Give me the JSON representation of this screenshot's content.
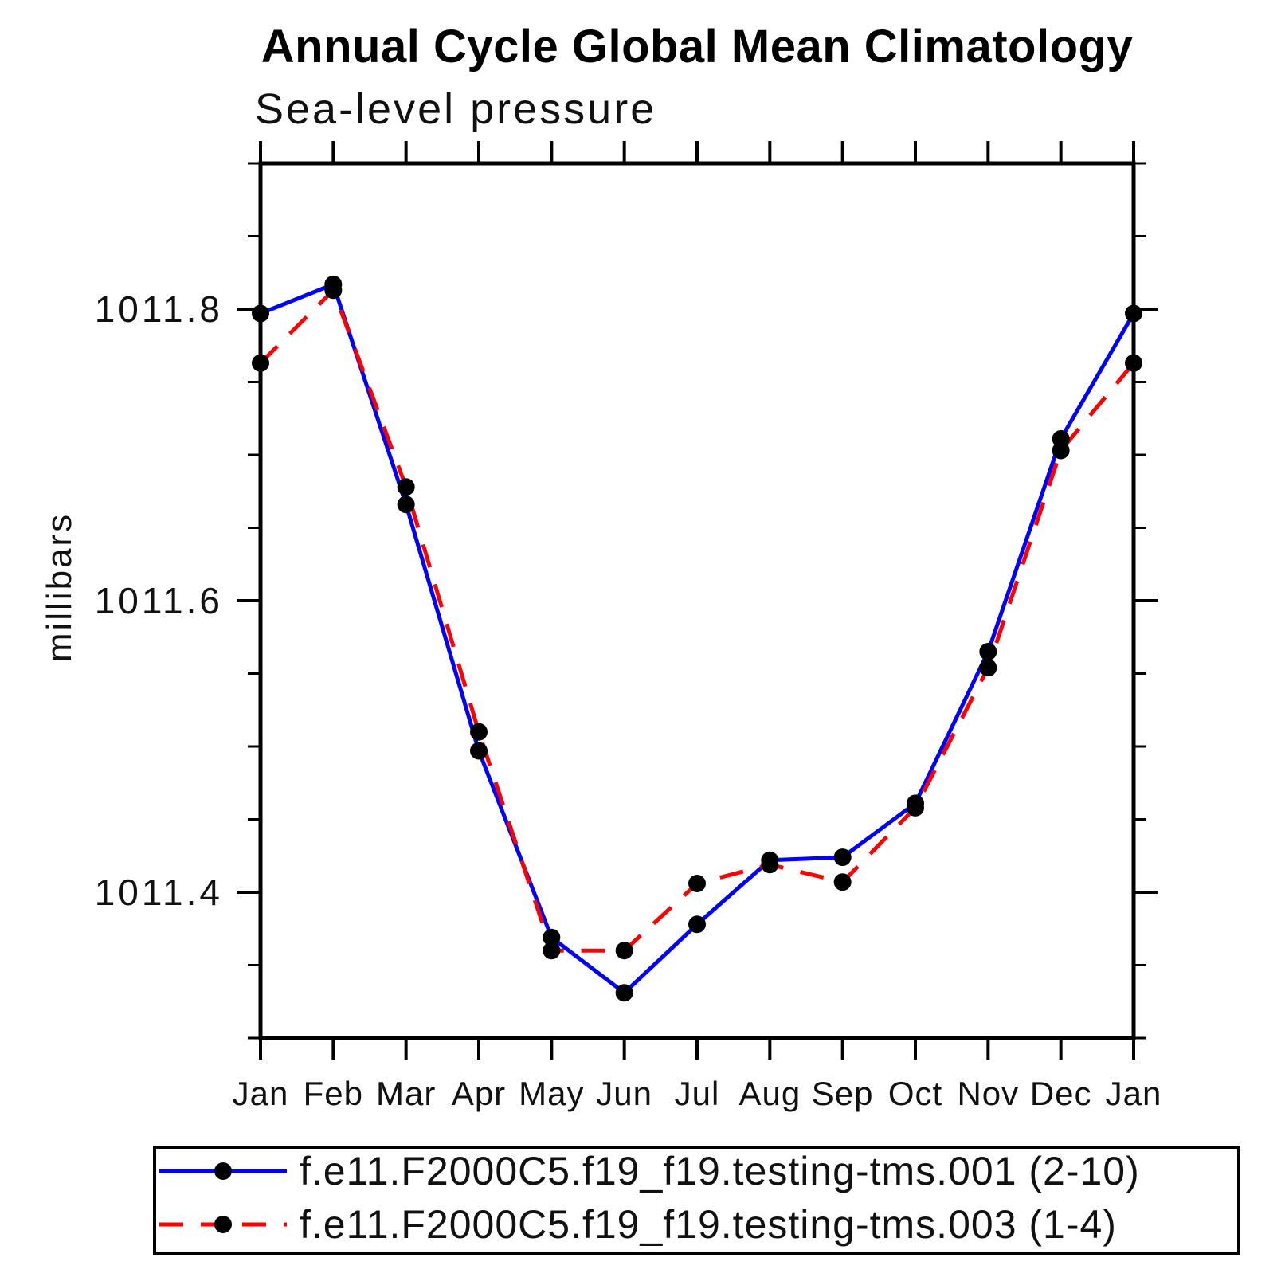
{
  "title": "Annual Cycle Global Mean Climatology",
  "chart_data": {
    "type": "line",
    "title": "Annual Cycle Global Mean Climatology",
    "subtitle": "Sea-level pressure",
    "ylabel": "millibars",
    "x_categories": [
      "Jan",
      "Feb",
      "Mar",
      "Apr",
      "May",
      "Jun",
      "Jul",
      "Aug",
      "Sep",
      "Oct",
      "Nov",
      "Dec",
      "Jan"
    ],
    "ylim": [
      1011.3,
      1011.9
    ],
    "yticks": [
      1011.8,
      1011.6,
      1011.4
    ],
    "ytick_labels": [
      "1011.8",
      "1011.6",
      "1011.4"
    ],
    "minor_tick_step": 0.05,
    "grid": false,
    "axis_color": "#000000",
    "legend_position": "bottom",
    "series": [
      {
        "name": "f.e11.F2000C5.f19_f19.testing-tms.001 (2-10)",
        "color": "#0000ff",
        "line_style": "solid",
        "dash": "",
        "marker": "filled-circle",
        "marker_color": "#000000",
        "values": [
          1011.797,
          1011.817,
          1011.666,
          1011.497,
          1011.369,
          1011.331,
          1011.378,
          1011.422,
          1011.424,
          1011.461,
          1011.565,
          1011.711,
          1011.797
        ]
      },
      {
        "name": "f.e11.F2000C5.f19_f19.testing-tms.003 (1-4)",
        "color": "#ff0000",
        "line_style": "dashed",
        "dash": "30 22",
        "marker": "filled-circle",
        "marker_color": "#000000",
        "values": [
          1011.763,
          1011.813,
          1011.678,
          1011.51,
          1011.36,
          1011.36,
          1011.406,
          1011.419,
          1011.407,
          1011.458,
          1011.554,
          1011.703,
          1011.763
        ]
      }
    ]
  }
}
